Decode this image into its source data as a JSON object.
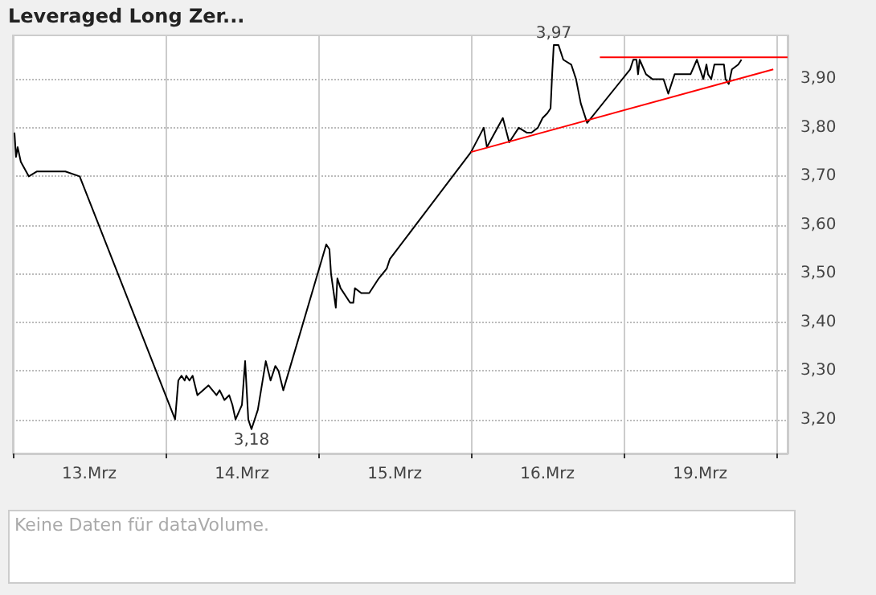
{
  "chart_data": {
    "type": "line",
    "title": "Leveraged Long Zer...",
    "categories": [
      null,
      null,
      null,
      null,
      null,
      null,
      null,
      null,
      null,
      null,
      null,
      null,
      null,
      null,
      null,
      null,
      null,
      null,
      null,
      null,
      null,
      null,
      null,
      null,
      null,
      null,
      null,
      null,
      null,
      null,
      null,
      null,
      null,
      null,
      null,
      null,
      null,
      null,
      null,
      null,
      null,
      null,
      null,
      null,
      null,
      null,
      null,
      null,
      "13.Mrz",
      null,
      null,
      null,
      null,
      null,
      null,
      null,
      null,
      null,
      null,
      null,
      null,
      null,
      null,
      null,
      null,
      null,
      null,
      null,
      null,
      null,
      null,
      null,
      null,
      null,
      null,
      null,
      null,
      null,
      null,
      null,
      null,
      null,
      null,
      null,
      null,
      null,
      null,
      null,
      null,
      null,
      null,
      null,
      null,
      null,
      null,
      null,
      null,
      null,
      null,
      null,
      null,
      null,
      null,
      null,
      null,
      null,
      null,
      null,
      null,
      null,
      null,
      null,
      null,
      null,
      null,
      null,
      null,
      null,
      null,
      null,
      null,
      null,
      null,
      null,
      null,
      null,
      null,
      null,
      null,
      null,
      null,
      null,
      null,
      null,
      null,
      null,
      null,
      null,
      null,
      null,
      null,
      null,
      null,
      null,
      "14.Mrz",
      null,
      null,
      null,
      null,
      null,
      null,
      null,
      null,
      null,
      null,
      null,
      null,
      null,
      null,
      null,
      null,
      null,
      null,
      null,
      null,
      null,
      null,
      null,
      null,
      null,
      null,
      null,
      null,
      null,
      null,
      null,
      null,
      null,
      null,
      null,
      null,
      null,
      null,
      null,
      null,
      null,
      null,
      null,
      null,
      null,
      null,
      null,
      null,
      null,
      null,
      null,
      null,
      null,
      null,
      null,
      null,
      null,
      null,
      null,
      null,
      null,
      null,
      null,
      null,
      null,
      null,
      null,
      null,
      null,
      null,
      null,
      null,
      null,
      null,
      null,
      null,
      null,
      null,
      null,
      null,
      null,
      null,
      null,
      null,
      null,
      null,
      null,
      null,
      null,
      null,
      null,
      null,
      null,
      null,
      null,
      "15.Mrz",
      null,
      null,
      null,
      null,
      null,
      null,
      null,
      null,
      null,
      null,
      null,
      null,
      null,
      null,
      null,
      null,
      null,
      null,
      null,
      null,
      null,
      null,
      null,
      null,
      null,
      null,
      null,
      null,
      null,
      null,
      null,
      null,
      null,
      null,
      null,
      null,
      null,
      null,
      null,
      null,
      null,
      null,
      null,
      null,
      null,
      null,
      null,
      null,
      null,
      null,
      null,
      null,
      null,
      null,
      null,
      null,
      null,
      null,
      null,
      null,
      null,
      null,
      null,
      null,
      null,
      null,
      null,
      null,
      null,
      null,
      null,
      null,
      null,
      null,
      null,
      null,
      null,
      null,
      null,
      null,
      null,
      null,
      null,
      null,
      null,
      null,
      null,
      null,
      null,
      null,
      null,
      null,
      null,
      null,
      null,
      "16.Mrz",
      null,
      null,
      null,
      null,
      null,
      null,
      null,
      null,
      null,
      null,
      null,
      null,
      null,
      null,
      null,
      null,
      null,
      null,
      null,
      null,
      null,
      null,
      null,
      null,
      null,
      null,
      null,
      null,
      null,
      null,
      null,
      null,
      null,
      null,
      null,
      null,
      null,
      null,
      null,
      null,
      null,
      null,
      null,
      null,
      null,
      null,
      null,
      null,
      null,
      null,
      null,
      null,
      null,
      null,
      null,
      null,
      null,
      null,
      null,
      null,
      null,
      null,
      null,
      null,
      null,
      null,
      null,
      null,
      null,
      null,
      null,
      null,
      null,
      null,
      null,
      null,
      null,
      null,
      null,
      null,
      null,
      null,
      null,
      null,
      null,
      null,
      null,
      null,
      null,
      null,
      null,
      null,
      null,
      null,
      null,
      "19.Mrz",
      null,
      null,
      null,
      null,
      null,
      null,
      null,
      null,
      null,
      null,
      null,
      null,
      null,
      null,
      null,
      null,
      null,
      null,
      null,
      null,
      null,
      null,
      null,
      null,
      null,
      null,
      null,
      null,
      null,
      null,
      null,
      null,
      null,
      null,
      null,
      null,
      null,
      null,
      null,
      null,
      null,
      null,
      null,
      null,
      null,
      null,
      null,
      null,
      null,
      null,
      null,
      null,
      null,
      null,
      null
    ],
    "ylim": [
      3.13,
      3.99
    ],
    "yticks": [
      {
        "value": 3.2,
        "label": "3,20"
      },
      {
        "value": 3.3,
        "label": "3,30"
      },
      {
        "value": 3.4,
        "label": "3,40"
      },
      {
        "value": 3.5,
        "label": "3,50"
      },
      {
        "value": 3.6,
        "label": "3,60"
      },
      {
        "value": 3.7,
        "label": "3,70"
      },
      {
        "value": 3.8,
        "label": "3,80"
      },
      {
        "value": 3.9,
        "label": "3,90"
      }
    ],
    "grid": true,
    "marker": "none",
    "line_style": "solid",
    "series": [
      {
        "color": "#000000",
        "values": [
          null,
          3.79,
          3.74,
          3.76,
          null,
          3.73,
          null,
          null,
          null,
          null,
          3.7,
          null,
          null,
          null,
          null,
          3.71,
          null,
          null,
          null,
          null,
          null,
          null,
          null,
          null,
          null,
          null,
          null,
          null,
          null,
          null,
          null,
          null,
          null,
          3.71,
          null,
          null,
          null,
          null,
          null,
          null,
          null,
          null,
          3.7,
          null,
          null,
          null,
          null,
          null,
          null,
          null,
          null,
          null,
          null,
          null,
          null,
          null,
          null,
          null,
          null,
          null,
          null,
          null,
          null,
          null,
          null,
          null,
          null,
          null,
          null,
          null,
          null,
          null,
          null,
          null,
          null,
          null,
          null,
          null,
          null,
          null,
          null,
          null,
          null,
          null,
          null,
          null,
          null,
          null,
          null,
          null,
          null,
          null,
          null,
          null,
          null,
          null,
          null,
          null,
          null,
          null,
          null,
          null,
          3.2,
          null,
          3.28,
          null,
          3.29,
          null,
          3.28,
          3.29,
          null,
          3.28,
          null,
          3.29,
          null,
          null,
          3.25,
          null,
          null,
          null,
          null,
          null,
          null,
          3.27,
          null,
          null,
          null,
          null,
          3.25,
          null,
          3.26,
          null,
          null,
          3.24,
          null,
          null,
          3.25,
          null,
          3.23,
          null,
          3.2,
          null,
          null,
          null,
          3.23,
          null,
          3.32,
          null,
          3.2,
          null,
          3.18,
          null,
          null,
          null,
          3.22,
          null,
          null,
          null,
          null,
          3.32,
          null,
          null,
          3.28,
          null,
          null,
          3.31,
          null,
          3.3,
          null,
          null,
          3.26,
          null,
          null,
          null,
          null,
          null,
          null,
          null,
          null,
          null,
          null,
          null,
          null,
          null,
          null,
          null,
          null,
          null,
          null,
          null,
          null,
          null,
          null,
          null,
          null,
          null,
          null,
          3.56,
          null,
          3.55,
          3.5,
          null,
          null,
          3.43,
          3.49,
          null,
          3.47,
          null,
          null,
          null,
          null,
          null,
          3.44,
          null,
          3.44,
          3.47,
          null,
          null,
          null,
          3.46,
          null,
          null,
          null,
          null,
          3.46,
          null,
          null,
          null,
          null,
          null,
          3.49,
          null,
          null,
          null,
          null,
          3.51,
          null,
          3.53,
          null,
          null,
          null,
          null,
          null,
          null,
          null,
          null,
          null,
          null,
          null,
          null,
          null,
          null,
          null,
          null,
          null,
          null,
          null,
          null,
          null,
          null,
          null,
          null,
          null,
          null,
          null,
          null,
          null,
          null,
          null,
          null,
          null,
          null,
          null,
          null,
          null,
          null,
          null,
          null,
          null,
          null,
          null,
          null,
          null,
          null,
          null,
          null,
          null,
          null,
          3.75,
          null,
          null,
          null,
          null,
          null,
          null,
          null,
          3.8,
          null,
          3.76,
          null,
          null,
          null,
          null,
          null,
          null,
          null,
          null,
          null,
          3.82,
          null,
          null,
          null,
          3.77,
          null,
          null,
          null,
          null,
          null,
          3.8,
          null,
          null,
          null,
          null,
          3.79,
          null,
          null,
          3.79,
          null,
          null,
          null,
          3.8,
          null,
          null,
          3.82,
          null,
          null,
          3.83,
          null,
          3.84,
          3.91,
          3.97,
          null,
          null,
          3.97,
          null,
          null,
          3.94,
          null,
          null,
          null,
          null,
          3.93,
          null,
          null,
          3.9,
          null,
          null,
          3.85,
          null,
          null,
          null,
          3.81,
          null,
          null,
          null,
          null,
          null,
          null,
          null,
          null,
          null,
          null,
          null,
          null,
          null,
          null,
          null,
          null,
          null,
          null,
          null,
          null,
          null,
          null,
          null,
          null,
          null,
          null,
          3.92,
          null,
          3.94,
          null,
          3.94,
          3.91,
          3.94,
          null,
          null,
          null,
          3.91,
          null,
          null,
          null,
          3.9,
          null,
          null,
          null,
          null,
          null,
          null,
          3.9,
          null,
          null,
          3.87,
          null,
          null,
          null,
          3.91,
          null,
          null,
          null,
          null,
          null,
          null,
          null,
          null,
          null,
          3.91,
          null,
          null,
          null,
          3.94,
          null,
          3.92,
          null,
          3.9,
          null,
          3.93,
          3.91,
          null,
          3.9,
          null,
          3.93,
          null,
          null,
          3.93,
          null,
          null,
          3.93,
          3.9,
          null,
          3.89,
          null,
          3.92,
          null,
          null,
          null,
          3.93,
          null,
          3.94,
          null,
          null,
          null,
          null,
          null,
          null,
          null,
          null,
          null,
          null,
          null,
          null,
          null,
          null,
          null,
          null,
          null,
          null,
          null,
          null,
          null,
          null,
          null,
          null,
          null,
          null,
          null,
          null,
          null
        ]
      },
      {
        "color": "#ff0000",
        "values": [
          null,
          null,
          null,
          null,
          null,
          null,
          null,
          null,
          null,
          null,
          null,
          null,
          null,
          null,
          null,
          null,
          null,
          null,
          null,
          null,
          null,
          null,
          null,
          null,
          null,
          null,
          null,
          null,
          null,
          null,
          null,
          null,
          null,
          null,
          null,
          null,
          null,
          null,
          null,
          null,
          null,
          null,
          null,
          null,
          null,
          null,
          null,
          null,
          null,
          null,
          null,
          null,
          null,
          null,
          null,
          null,
          null,
          null,
          null,
          null,
          null,
          null,
          null,
          null,
          null,
          null,
          null,
          null,
          null,
          null,
          null,
          null,
          null,
          null,
          null,
          null,
          null,
          null,
          null,
          null,
          null,
          null,
          null,
          null,
          null,
          null,
          null,
          null,
          null,
          null,
          null,
          null,
          null,
          null,
          null,
          null,
          null,
          null,
          null,
          null,
          null,
          null,
          null,
          null,
          null,
          null,
          null,
          null,
          null,
          null,
          null,
          null,
          null,
          null,
          null,
          null,
          null,
          null,
          null,
          null,
          null,
          null,
          null,
          null,
          null,
          null,
          null,
          null,
          null,
          null,
          null,
          null,
          null,
          null,
          null,
          null,
          null,
          null,
          null,
          null,
          null,
          null,
          null,
          null,
          null,
          null,
          null,
          null,
          null,
          null,
          null,
          null,
          null,
          null,
          null,
          null,
          null,
          null,
          null,
          null,
          null,
          null,
          null,
          null,
          null,
          null,
          null,
          null,
          null,
          null,
          null,
          null,
          null,
          null,
          null,
          null,
          null,
          null,
          null,
          null,
          null,
          null,
          null,
          null,
          null,
          null,
          null,
          null,
          null,
          null,
          null,
          null,
          null,
          null,
          null,
          null,
          null,
          null,
          null,
          null,
          null,
          null,
          null,
          null,
          null,
          null,
          null,
          null,
          null,
          null,
          null,
          null,
          null,
          null,
          null,
          null,
          null,
          null,
          null,
          null,
          null,
          null,
          null,
          null,
          null,
          null,
          null,
          null,
          null,
          null,
          null,
          null,
          null,
          null,
          null,
          null,
          null,
          null,
          null,
          null,
          null,
          null,
          null,
          null,
          null,
          null,
          null,
          null,
          null,
          null,
          null,
          null,
          null,
          null,
          null,
          null,
          null,
          null,
          null,
          null,
          null,
          null,
          null,
          null,
          null,
          null,
          null,
          null,
          null,
          null,
          null,
          null,
          null,
          null,
          null,
          null,
          null,
          null,
          null,
          null,
          null,
          null,
          null,
          null,
          null,
          null,
          null,
          null,
          3.75,
          null,
          null,
          null,
          null,
          null,
          null,
          null,
          null,
          null,
          null,
          null,
          null,
          null,
          null,
          null,
          null,
          null,
          null,
          null,
          null,
          null,
          null,
          null,
          null,
          null,
          null,
          null,
          null,
          null,
          null,
          null,
          null,
          null,
          null,
          null,
          null,
          null,
          null,
          null,
          null,
          null,
          null,
          null,
          null,
          null,
          null,
          null,
          null,
          null,
          null,
          null,
          null,
          null,
          null,
          null,
          null,
          null,
          null,
          null,
          null,
          null,
          null,
          null,
          null,
          null,
          null,
          null,
          null,
          null,
          null,
          null,
          null,
          null,
          null,
          null,
          null,
          null,
          null,
          null,
          null,
          null,
          null,
          null,
          null,
          null,
          null,
          null,
          null,
          null,
          null,
          null,
          null,
          null,
          null,
          null,
          null,
          null,
          null,
          null,
          null,
          null,
          null,
          null,
          null,
          null,
          null,
          null,
          null,
          null,
          null,
          null,
          null,
          null,
          null,
          null,
          null,
          null,
          null,
          null,
          null,
          null,
          null,
          null,
          null,
          null,
          null,
          null,
          null,
          null,
          null,
          null,
          null,
          null,
          null,
          null,
          null,
          null,
          null,
          null,
          null,
          null,
          null,
          null,
          null,
          null,
          null,
          null,
          null,
          null,
          null,
          null,
          null,
          null,
          null,
          null,
          null,
          null,
          null,
          null,
          null,
          null,
          null,
          null,
          null,
          null,
          null,
          null,
          null,
          null,
          null,
          null,
          null,
          null,
          null,
          null,
          null,
          null,
          null,
          null,
          null,
          null,
          null,
          null,
          null,
          null,
          null,
          null,
          null,
          null,
          3.92,
          null,
          null,
          null,
          null,
          null,
          null,
          null,
          null,
          null
        ]
      },
      {
        "color": "#ff0000",
        "values": [
          null,
          null,
          null,
          null,
          null,
          null,
          null,
          null,
          null,
          null,
          null,
          null,
          null,
          null,
          null,
          null,
          null,
          null,
          null,
          null,
          null,
          null,
          null,
          null,
          null,
          null,
          null,
          null,
          null,
          null,
          null,
          null,
          null,
          null,
          null,
          null,
          null,
          null,
          null,
          null,
          null,
          null,
          null,
          null,
          null,
          null,
          null,
          null,
          null,
          null,
          null,
          null,
          null,
          null,
          null,
          null,
          null,
          null,
          null,
          null,
          null,
          null,
          null,
          null,
          null,
          null,
          null,
          null,
          null,
          null,
          null,
          null,
          null,
          null,
          null,
          null,
          null,
          null,
          null,
          null,
          null,
          null,
          null,
          null,
          null,
          null,
          null,
          null,
          null,
          null,
          null,
          null,
          null,
          null,
          null,
          null,
          null,
          null,
          null,
          null,
          null,
          null,
          null,
          null,
          null,
          null,
          null,
          null,
          null,
          null,
          null,
          null,
          null,
          null,
          null,
          null,
          null,
          null,
          null,
          null,
          null,
          null,
          null,
          null,
          null,
          null,
          null,
          null,
          null,
          null,
          null,
          null,
          null,
          null,
          null,
          null,
          null,
          null,
          null,
          null,
          null,
          null,
          null,
          null,
          null,
          null,
          null,
          null,
          null,
          null,
          null,
          null,
          null,
          null,
          null,
          null,
          null,
          null,
          null,
          null,
          null,
          null,
          null,
          null,
          null,
          null,
          null,
          null,
          null,
          null,
          null,
          null,
          null,
          null,
          null,
          null,
          null,
          null,
          null,
          null,
          null,
          null,
          null,
          null,
          null,
          null,
          null,
          null,
          null,
          null,
          null,
          null,
          null,
          null,
          null,
          null,
          null,
          null,
          null,
          null,
          null,
          null,
          null,
          null,
          null,
          null,
          null,
          null,
          null,
          null,
          null,
          null,
          null,
          null,
          null,
          null,
          null,
          null,
          null,
          null,
          null,
          null,
          null,
          null,
          null,
          null,
          null,
          null,
          null,
          null,
          null,
          null,
          null,
          null,
          null,
          null,
          null,
          null,
          null,
          null,
          null,
          null,
          null,
          null,
          null,
          null,
          null,
          null,
          null,
          null,
          null,
          null,
          null,
          null,
          null,
          null,
          null,
          null,
          null,
          null,
          null,
          null,
          null,
          null,
          null,
          null,
          null,
          null,
          null,
          null,
          null,
          null,
          null,
          null,
          null,
          null,
          null,
          null,
          null,
          null,
          null,
          null,
          null,
          null,
          null,
          null,
          null,
          null,
          null,
          null,
          null,
          null,
          null,
          null,
          null,
          null,
          null,
          null,
          null,
          null,
          null,
          null,
          null,
          null,
          null,
          null,
          null,
          null,
          null,
          null,
          null,
          null,
          null,
          null,
          null,
          null,
          null,
          null,
          null,
          null,
          null,
          null,
          null,
          null,
          null,
          null,
          null,
          null,
          null,
          null,
          null,
          null,
          null,
          null,
          null,
          null,
          null,
          null,
          null,
          null,
          null,
          null,
          null,
          null,
          null,
          null,
          null,
          null,
          null,
          null,
          null,
          null,
          null,
          null,
          null,
          null,
          null,
          null,
          null,
          null,
          null,
          null,
          null,
          null,
          null,
          null,
          null,
          null,
          null,
          3.945,
          null,
          null,
          null,
          null,
          null,
          null,
          null,
          null,
          null,
          null,
          null,
          null,
          null,
          null,
          null,
          null,
          null,
          null,
          null,
          null,
          null,
          null,
          null,
          null,
          null,
          null,
          null,
          null,
          null,
          null,
          null,
          null,
          null,
          null,
          null,
          null,
          null,
          null,
          null,
          null,
          null,
          null,
          null,
          null,
          null,
          null,
          null,
          null,
          null,
          null,
          null,
          null,
          null,
          null,
          null,
          null,
          null,
          null,
          null,
          null,
          null,
          null,
          null,
          null,
          null,
          null,
          null,
          null,
          null,
          null,
          null,
          null,
          null,
          null,
          null,
          null,
          null,
          null,
          null,
          null,
          null,
          null,
          null,
          null,
          null,
          null,
          null,
          null,
          null,
          null,
          null,
          null,
          null,
          null,
          null,
          null,
          null,
          null,
          null,
          null,
          null,
          null,
          null,
          null,
          null,
          null,
          null,
          null,
          null,
          null,
          null,
          null,
          null,
          null,
          null,
          null,
          null,
          3.945
        ]
      }
    ],
    "annotations": [
      {
        "text": "3,97",
        "y": 3.97
      },
      {
        "text": "3,18",
        "y": 3.18
      },
      "Keine Daten für dataVolume."
    ]
  }
}
